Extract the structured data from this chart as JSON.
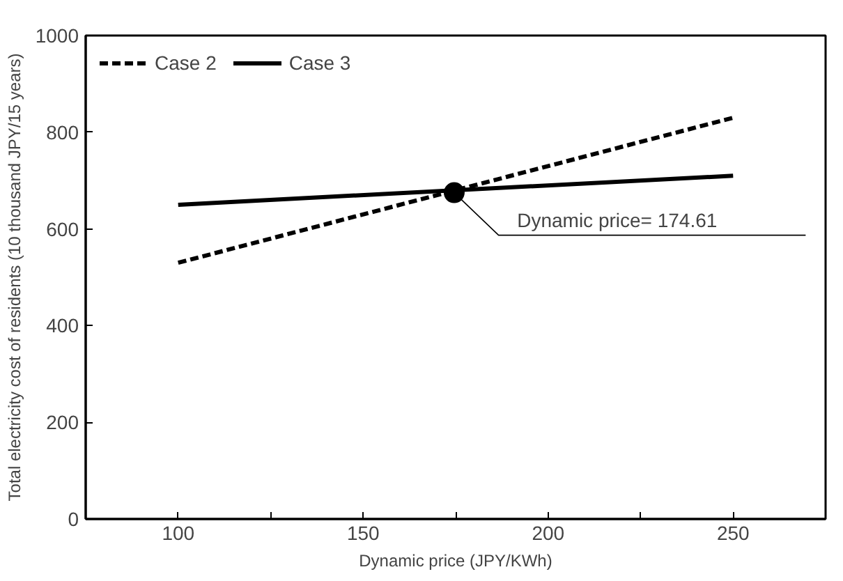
{
  "chart_data": {
    "type": "line",
    "xlabel": "Dynamic price (JPY/KWh)",
    "ylabel": "Total electricity cost of residents (10 thousand JPY/15 years)",
    "xlim": [
      75,
      275
    ],
    "ylim": [
      0,
      1000
    ],
    "xticks": [
      100,
      {
        "value": 125,
        "label": null
      },
      150,
      {
        "value": 175,
        "label": null
      },
      200,
      {
        "value": 225,
        "label": null
      },
      250
    ],
    "yticks": [
      0,
      200,
      400,
      600,
      800,
      1000
    ],
    "series": [
      {
        "name": "Case 2",
        "color": "#000000",
        "x": [
          100,
          250
        ],
        "values": [
          530,
          830
        ],
        "line_style": "dashed",
        "marker": "none"
      },
      {
        "name": "Case 3",
        "color": "#000000",
        "x": [
          100,
          250
        ],
        "values": [
          650,
          710
        ],
        "line_style": "solid",
        "marker": "none"
      },
      {
        "type": "scatter",
        "color": "#000000",
        "x": [
          174.61
        ],
        "values": [
          675
        ],
        "marker": "circle"
      }
    ],
    "annotations": [
      {
        "text": "Dynamic price= 174.61",
        "x": 174.61,
        "y": 675
      }
    ],
    "legend": "top left",
    "grid": false
  }
}
